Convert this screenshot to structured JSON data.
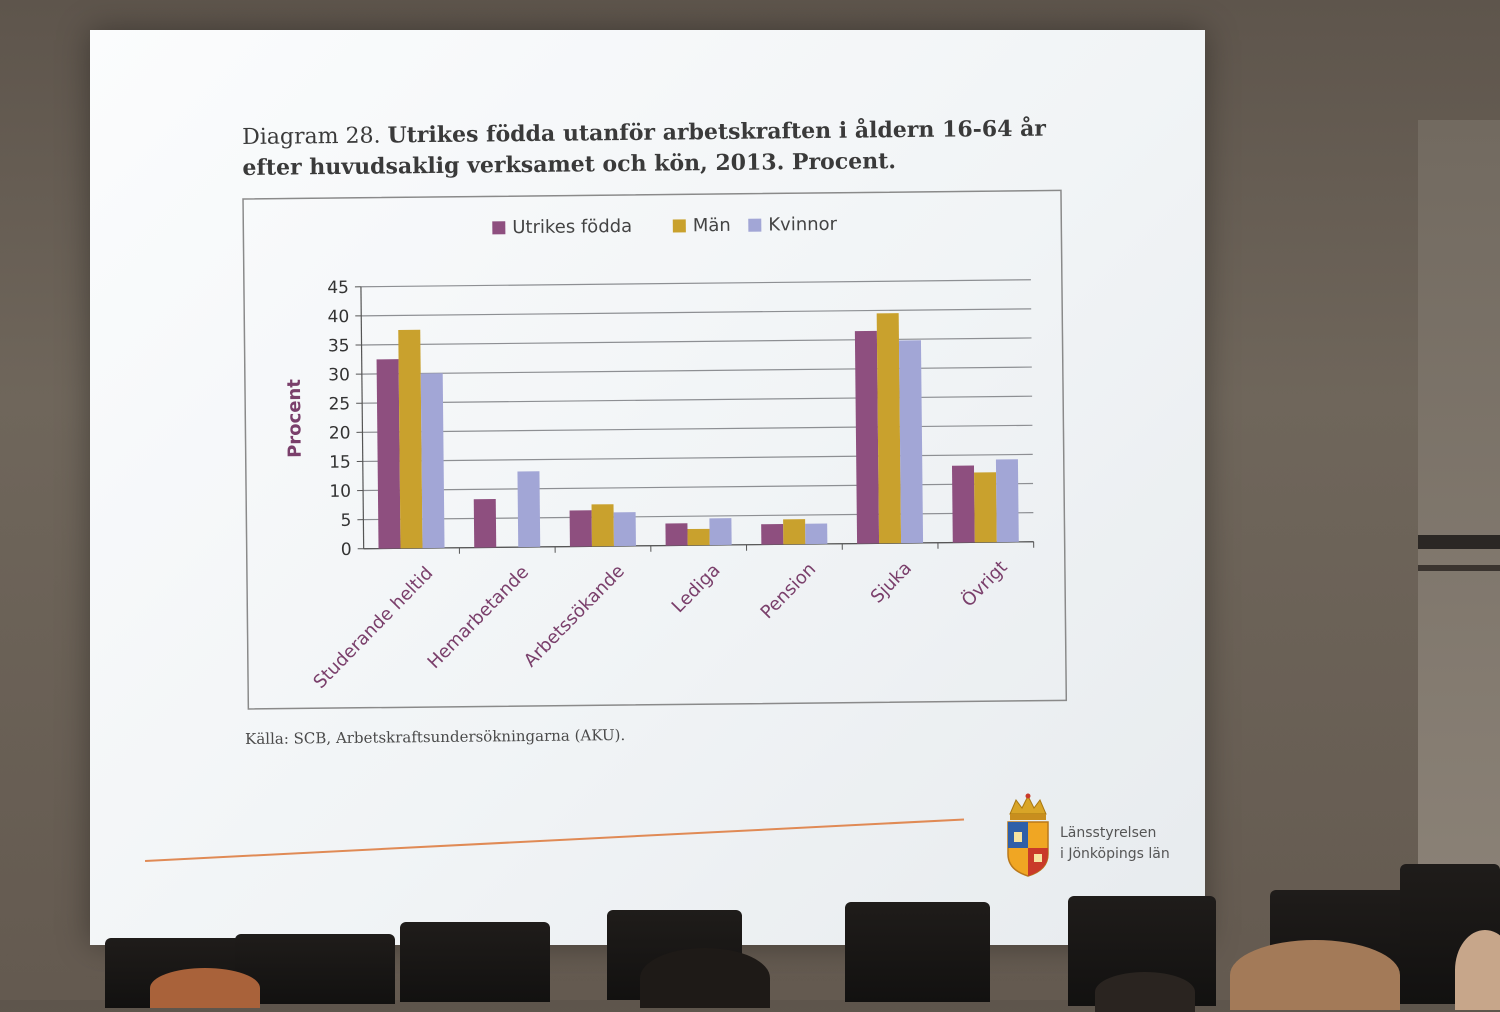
{
  "slide": {
    "title_number": "Diagram 28.",
    "title_text": "Utrikes födda utanför arbetskraften i åldern 16-64 år efter huvudsaklig verksamet och kön, 2013. Procent.",
    "source": "Källa: SCB, Arbetskraftsundersökningarna (AKU)."
  },
  "logo": {
    "line1": "Länsstyrelsen",
    "line2": "i Jönköpings län"
  },
  "colors": {
    "utrikes": "#8e4f7f",
    "man": "#c9a12d",
    "kvinnor": "#a2a6d6",
    "accent_line": "#e08a55"
  },
  "chart_data": {
    "type": "bar",
    "categories": [
      "Studerande heltid",
      "Hemarbetande",
      "Arbetssökande",
      "Lediga",
      "Pension",
      "Sjuka",
      "Övrigt"
    ],
    "series": [
      {
        "name": "Utrikes födda",
        "values": [
          32.5,
          8.3,
          6.2,
          3.8,
          3.5,
          36.5,
          13.2
        ]
      },
      {
        "name": "Män",
        "values": [
          37.5,
          0,
          7.2,
          2.8,
          4.3,
          39.5,
          12.0
        ]
      },
      {
        "name": "Kvinnor",
        "values": [
          30.0,
          13.0,
          5.8,
          4.6,
          3.5,
          34.8,
          14.2
        ]
      }
    ],
    "ylabel": "Procent",
    "ylim": [
      0,
      45
    ],
    "yticks": [
      0,
      5,
      10,
      15,
      20,
      25,
      30,
      35,
      40,
      45
    ],
    "grid": true,
    "legend": "top"
  }
}
